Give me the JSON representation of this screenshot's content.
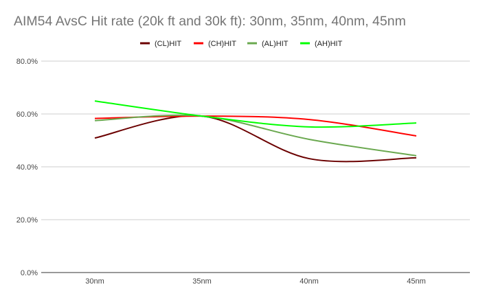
{
  "chart_data": {
    "type": "line",
    "title": "AIM54 AvsC Hit rate (20k ft and 30k ft): 30nm, 35nm,  40nm, 45nm",
    "categories": [
      "30nm",
      "35nm",
      "40nm",
      "45nm"
    ],
    "ylim": [
      0,
      80
    ],
    "yticks": [
      "0.0%",
      "20.0%",
      "40.0%",
      "60.0%",
      "80.0%"
    ],
    "ytick_values": [
      0,
      20,
      40,
      60,
      80
    ],
    "grid": true,
    "smooth": true,
    "legend": "top",
    "series": [
      {
        "name": "(CL)HIT",
        "color": "#6b0000",
        "values": [
          50.9,
          59.2,
          43.1,
          43.4
        ]
      },
      {
        "name": "(CH)HIT",
        "color": "#ff0000",
        "values": [
          58.3,
          59.2,
          57.9,
          51.7
        ]
      },
      {
        "name": "(AL)HIT",
        "color": "#6aa84f",
        "values": [
          57.5,
          59.2,
          50.4,
          44.2
        ]
      },
      {
        "name": "(AH)HIT",
        "color": "#00ff00",
        "values": [
          64.9,
          59.2,
          55.1,
          56.6
        ]
      }
    ]
  }
}
